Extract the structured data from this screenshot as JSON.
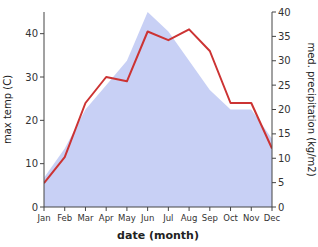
{
  "chart_data": {
    "type": "line",
    "categories": [
      "Jan",
      "Feb",
      "Mar",
      "Apr",
      "May",
      "Jun",
      "Jul",
      "Aug",
      "Sep",
      "Oct",
      "Nov",
      "Dec"
    ],
    "series": [
      {
        "type": "area",
        "axis": "y2",
        "color": "#c8d0f5",
        "values": [
          6,
          12,
          20,
          25,
          30,
          40,
          36,
          30,
          24,
          20,
          20,
          14
        ]
      },
      {
        "type": "line",
        "color": "#cc3333",
        "values": [
          5.5,
          11.5,
          24,
          30,
          29,
          40.5,
          38.5,
          41,
          36,
          24,
          24,
          13.5
        ]
      }
    ],
    "xlabel": "date (month)",
    "ylabel": "max temp (C)",
    "y2label": "med. precipitation (kg/m2)",
    "ylim": [
      0,
      45
    ],
    "yticks": [
      0,
      10,
      20,
      30,
      40
    ],
    "y2lim": [
      0,
      40
    ],
    "y2ticks": [
      0,
      5,
      10,
      15,
      20,
      25,
      30,
      35,
      40
    ],
    "grid": false
  }
}
